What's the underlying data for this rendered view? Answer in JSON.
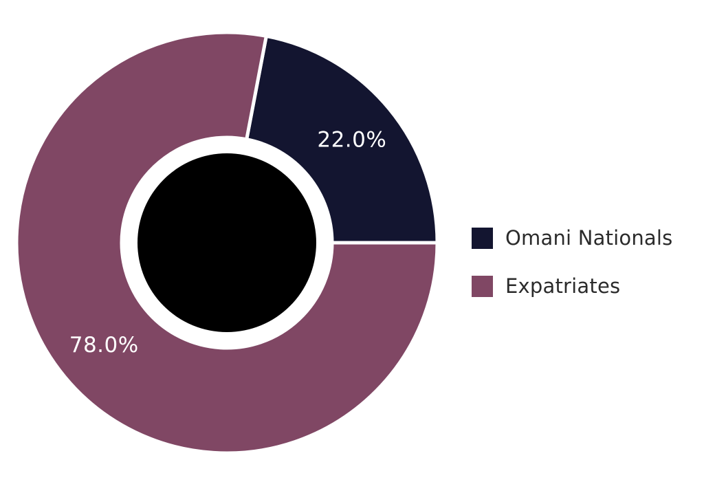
{
  "chart_data": {
    "type": "pie",
    "style": "donut",
    "categories": [
      "Omani Nationals",
      "Expatriates"
    ],
    "values": [
      22.0,
      78.0
    ],
    "labels": [
      "22.0%",
      "78.0%"
    ],
    "colors": [
      "#131530",
      "#804764"
    ],
    "center_color": "#000000",
    "legend_position": "right",
    "legend": [
      {
        "label": "Omani Nationals",
        "color": "#131530"
      },
      {
        "label": "Expatriates",
        "color": "#804764"
      }
    ]
  }
}
